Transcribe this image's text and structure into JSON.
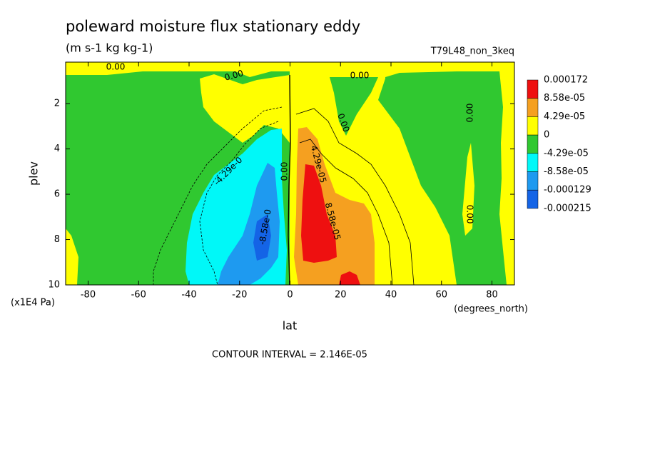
{
  "chart_data": {
    "type": "contour",
    "title": "poleward moisture flux stationary eddy",
    "subtitle": "(m s-1 kg kg-1)",
    "dataset": "T79L48_non_3keq",
    "x_label": "lat",
    "y_label": "plev",
    "x_units": "(degrees_north)",
    "y_units": "(x1E4 Pa)",
    "note": "CONTOUR INTERVAL = 2.146E-05",
    "xlim": [
      -88.9,
      88.9
    ],
    "ylim": [
      10,
      0.17
    ],
    "xticks": [
      -80,
      -60,
      -40,
      -20,
      0,
      20,
      40,
      60,
      80
    ],
    "yticks": [
      2,
      4,
      6,
      8,
      10
    ],
    "levels": [
      0.000172,
      {
        "value": 8.58e-05,
        "label": "8.58e-05"
      },
      {
        "value": 4.29e-05,
        "label": "4.29e-05"
      },
      0,
      {
        "value": -4.29e-05,
        "label": "-4.29e-05"
      },
      {
        "value": -8.58e-05,
        "label": "-8.58e-05"
      },
      -0.000129,
      -0.000215
    ],
    "colors": [
      "#ee1010",
      "#f5a020",
      "#ffff00",
      "#30c830",
      "#00f8f8",
      "#1e9af0",
      "#1464e6"
    ],
    "contour_labels": [
      "0.00",
      "0.00",
      "0.00",
      "0.00",
      "0.00",
      "0.00",
      "0.00",
      "-4.29e-0",
      "-8.58e-0",
      "4.29e-05",
      "8.58e-05"
    ]
  }
}
